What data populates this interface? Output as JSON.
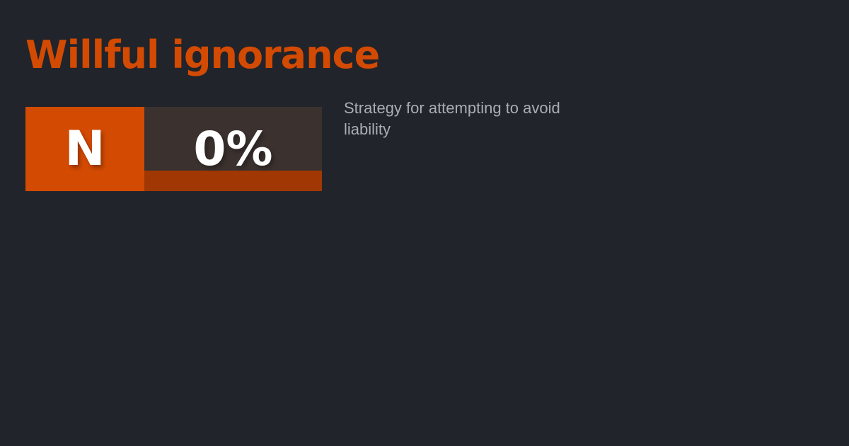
{
  "card": {
    "title": "Willful ignorance",
    "description": "Strategy for attempting to avoid liability",
    "badge": {
      "logo_letter": "N",
      "percentage": "0%"
    },
    "colors": {
      "background": "#21242a",
      "accent_orange": "#d34a03",
      "panel_brown": "#3b322f",
      "track_rust": "#a13803",
      "description_gray": "#a9aeb5",
      "text_white": "#ffffff"
    }
  }
}
